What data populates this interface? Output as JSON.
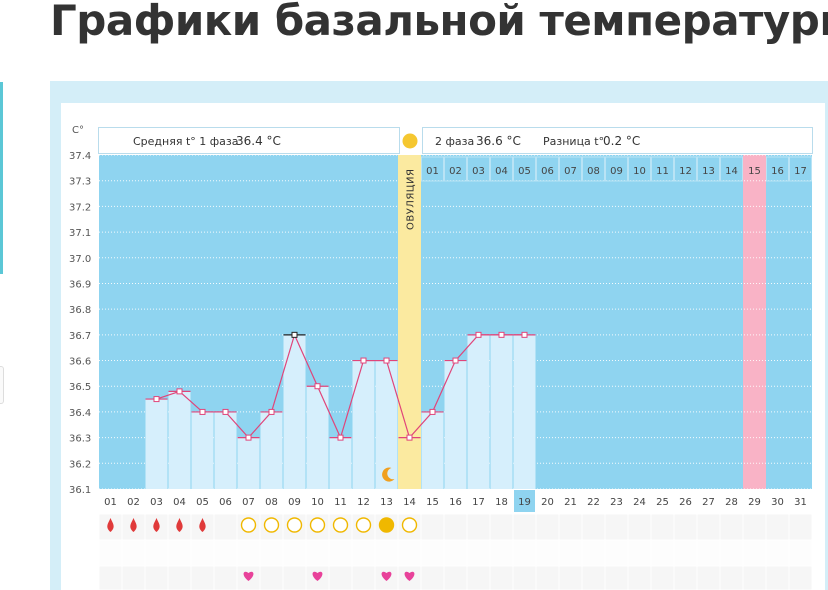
{
  "page": {
    "title": "Графики базальной температуры"
  },
  "info": {
    "phase1_label": "Средняя t° 1 фаза",
    "phase1_value": "36.4 °C",
    "phase2_label": "2 фаза",
    "phase2_value": "36.6 °C",
    "diff_label": "Разница t°",
    "diff_value": "0.2 °C"
  },
  "ovulation_label": "ОВУЛЯЦИЯ",
  "colors": {
    "chart_bg": "#8fd4f0",
    "bar_fill": "#d6effc",
    "line": "#e0457a",
    "ovulation_band": "#fbeaa0",
    "highlight_day": "#f9b3c6",
    "current_day": "#8fd4f0",
    "drop": "#e03a3a",
    "circle": "#f0b800",
    "heart": "#e8429a"
  },
  "chart_data": {
    "type": "bar",
    "ylabel": "C°",
    "yticks": [
      "36.1",
      "36.2",
      "36.3",
      "36.4",
      "36.5",
      "36.6",
      "36.7",
      "36.8",
      "36.9",
      "37.0",
      "37.1",
      "37.2",
      "37.3",
      "37.4"
    ],
    "ylim": [
      36.1,
      37.4
    ],
    "x": [
      "01",
      "02",
      "03",
      "04",
      "05",
      "06",
      "07",
      "08",
      "09",
      "10",
      "11",
      "12",
      "13",
      "14",
      "15",
      "16",
      "17",
      "18",
      "19",
      "20",
      "21",
      "22",
      "23",
      "24",
      "25",
      "26",
      "27",
      "28",
      "29",
      "30",
      "31"
    ],
    "values": [
      null,
      null,
      36.45,
      36.48,
      36.4,
      36.4,
      36.3,
      36.4,
      36.7,
      36.5,
      36.3,
      36.6,
      36.6,
      36.3,
      36.4,
      36.6,
      36.7,
      36.7,
      36.7,
      null,
      null,
      null,
      null,
      null,
      null,
      null,
      null,
      null,
      null,
      null,
      null
    ],
    "phase_days": [
      "01",
      "02",
      "03",
      "04",
      "05",
      "06",
      "07",
      "08",
      "09",
      "10",
      "11",
      "12",
      "13",
      "14",
      "15",
      "16",
      "17"
    ],
    "phase_offset": 14,
    "ovulation_day": "14",
    "highlight_day": "29",
    "current_day": "19",
    "grid": true,
    "menstruation_days": [
      "01",
      "02",
      "03",
      "04",
      "05"
    ],
    "circle_days": [
      "07",
      "08",
      "09",
      "10",
      "11",
      "12",
      "13",
      "14"
    ],
    "filled_circle_day": "13",
    "heart_days": [
      "07",
      "10",
      "13",
      "14"
    ],
    "moon_day": "13"
  }
}
